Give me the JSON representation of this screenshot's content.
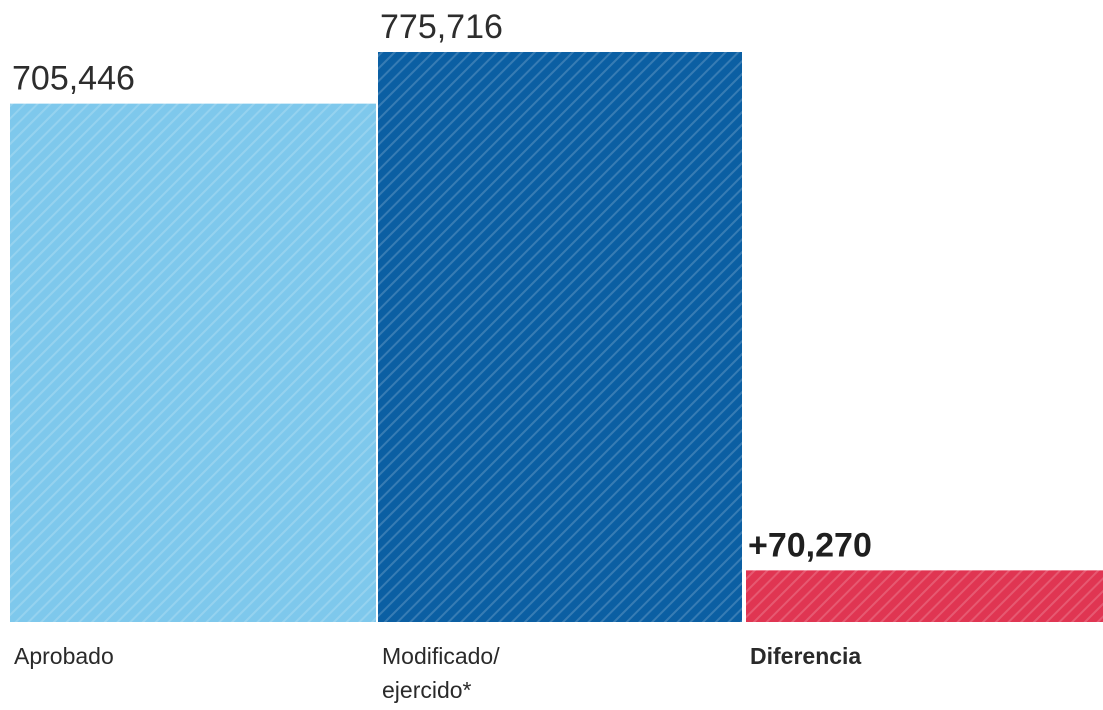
{
  "chart_data": {
    "type": "bar",
    "categories": [
      "Aprobado",
      "Modificado/ ejercido*",
      "Diferencia"
    ],
    "category_lines": [
      [
        "Aprobado"
      ],
      [
        "Modificado/",
        "ejercido*"
      ],
      [
        "Diferencia"
      ]
    ],
    "values": [
      705446,
      775716,
      70270
    ],
    "value_labels": [
      "705,446",
      "775,716",
      "+70,270"
    ],
    "colors": [
      "#7ec8ec",
      "#0b5fa3",
      "#e03552"
    ],
    "hatch": "diagonal stripes",
    "ylim": [
      0,
      775716
    ],
    "title": "",
    "xlabel": "",
    "ylabel": "",
    "grid": false,
    "legend": "none"
  }
}
